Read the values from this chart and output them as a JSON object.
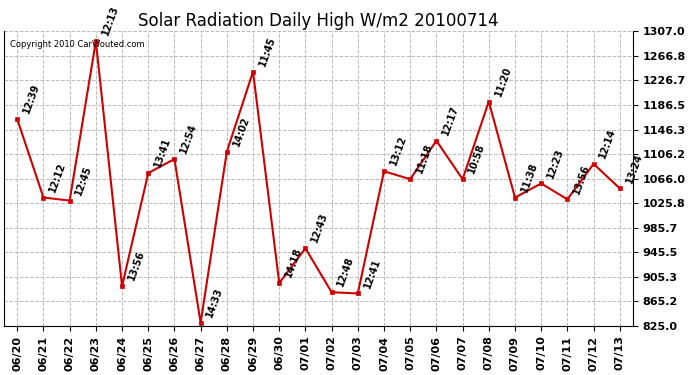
{
  "title": "Solar Radiation Daily High W/m2 20100714",
  "copyright": "Copyright 2010 CarWouted.com",
  "dates": [
    "06/20",
    "06/21",
    "06/22",
    "06/23",
    "06/24",
    "06/25",
    "06/26",
    "06/27",
    "06/28",
    "06/29",
    "06/30",
    "07/01",
    "07/02",
    "07/03",
    "07/04",
    "07/05",
    "07/06",
    "07/07",
    "07/08",
    "07/09",
    "07/10",
    "07/11",
    "07/12",
    "07/13"
  ],
  "values": [
    1163,
    1035,
    1030,
    1291,
    890,
    1075,
    1098,
    830,
    1110,
    1241,
    895,
    952,
    880,
    878,
    1078,
    1065,
    1128,
    1065,
    1192,
    1035,
    1058,
    1032,
    1090,
    1050
  ],
  "annotations": [
    "12:39",
    "12:12",
    "12:45",
    "12:13",
    "13:56",
    "13:41",
    "12:54",
    "14:33",
    "14:02",
    "11:45",
    "14:18",
    "12:43",
    "12:48",
    "12:41",
    "13:12",
    "11:18",
    "12:17",
    "10:58",
    "11:20",
    "11:38",
    "12:23",
    "13:56",
    "12:14",
    "13:24"
  ],
  "line_color": "#cc0000",
  "marker_color": "#cc0000",
  "bg_color": "#ffffff",
  "grid_color": "#bbbbbb",
  "ylim": [
    825.0,
    1307.0
  ],
  "yticks": [
    825.0,
    865.2,
    905.3,
    945.5,
    985.7,
    1025.8,
    1066.0,
    1106.2,
    1146.3,
    1186.5,
    1226.7,
    1266.8,
    1307.0
  ],
  "annotation_fontsize": 7,
  "annotation_rotation": 70,
  "title_fontsize": 12,
  "tick_fontsize": 8
}
